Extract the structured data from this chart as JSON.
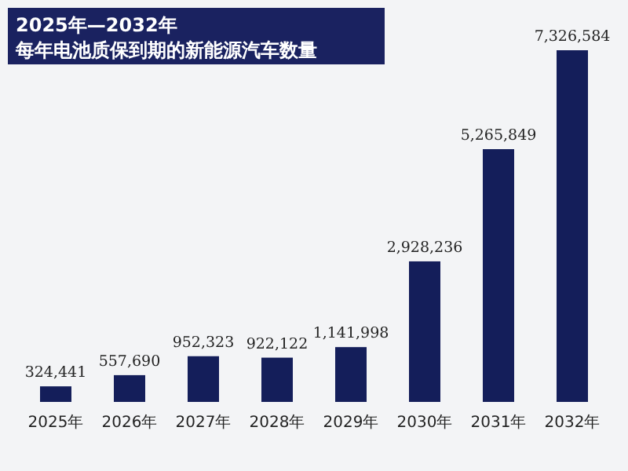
{
  "chart_data": {
    "type": "bar",
    "title": "2025年—2032年",
    "subtitle": "每年电池质保到期的新能源汽车数量",
    "categories": [
      "2025年",
      "2026年",
      "2027年",
      "2028年",
      "2029年",
      "2030年",
      "2031年",
      "2032年"
    ],
    "values": [
      324441,
      557690,
      952323,
      922122,
      1141998,
      2928236,
      5265849,
      7326584
    ],
    "value_labels": [
      "324,441",
      "557,690",
      "952,323",
      "922,122",
      "1,141,998",
      "2,928,236",
      "5,265,849",
      "7,326,584"
    ],
    "color": "#141e5a"
  }
}
